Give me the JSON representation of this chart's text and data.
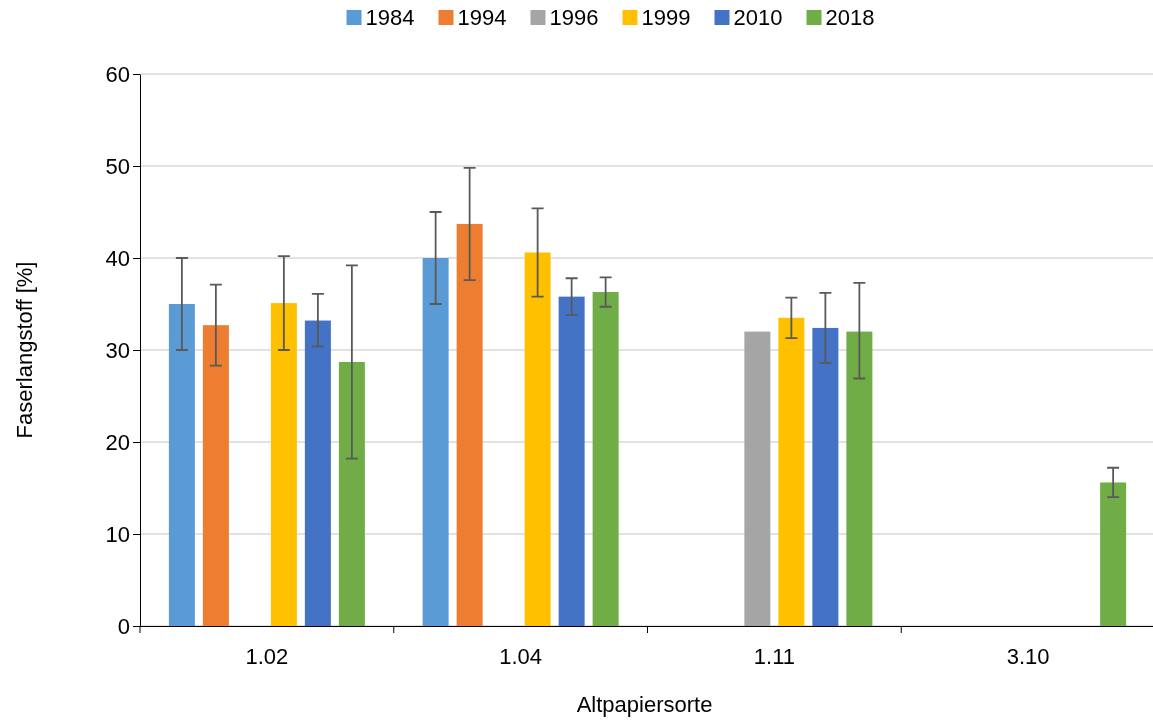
{
  "chart_data": {
    "type": "bar",
    "xlabel": "Altpapiersorte",
    "ylabel": "Faserlangstoff [%]",
    "categories": [
      "1.02",
      "1.04",
      "1.11",
      "3.10"
    ],
    "series": [
      {
        "name": "1984",
        "color": "#5b9bd5",
        "values": [
          35,
          40,
          null,
          null
        ],
        "errors": [
          [
            30,
            40
          ],
          [
            35,
            45
          ],
          null,
          null
        ]
      },
      {
        "name": "1994",
        "color": "#ed7d31",
        "values": [
          32.7,
          43.7,
          null,
          null
        ],
        "errors": [
          [
            28.3,
            37.1
          ],
          [
            37.6,
            49.8
          ],
          null,
          null
        ]
      },
      {
        "name": "1996",
        "color": "#a5a5a5",
        "values": [
          null,
          null,
          32,
          null
        ]
      },
      {
        "name": "1999",
        "color": "#ffc000",
        "values": [
          35.1,
          40.6,
          33.5,
          null
        ],
        "errors": [
          [
            30,
            40.2
          ],
          [
            35.8,
            45.4
          ],
          [
            31.3,
            35.7
          ],
          null
        ]
      },
      {
        "name": "2010",
        "color": "#4472c4",
        "values": [
          33.2,
          35.8,
          32.4,
          null
        ],
        "errors": [
          [
            30.4,
            36.1
          ],
          [
            33.8,
            37.8
          ],
          [
            28.6,
            36.2
          ],
          null
        ]
      },
      {
        "name": "2018",
        "color": "#70ad47",
        "values": [
          28.7,
          36.3,
          32,
          15.6
        ],
        "errors": [
          [
            18.2,
            39.2
          ],
          [
            34.7,
            37.9
          ],
          [
            26.9,
            37.3
          ],
          [
            14,
            17.2
          ]
        ]
      }
    ],
    "ylim": [
      0,
      60
    ],
    "yticks": [
      0,
      10,
      20,
      30,
      40,
      50,
      60
    ],
    "grid": "y",
    "legend": "top"
  }
}
